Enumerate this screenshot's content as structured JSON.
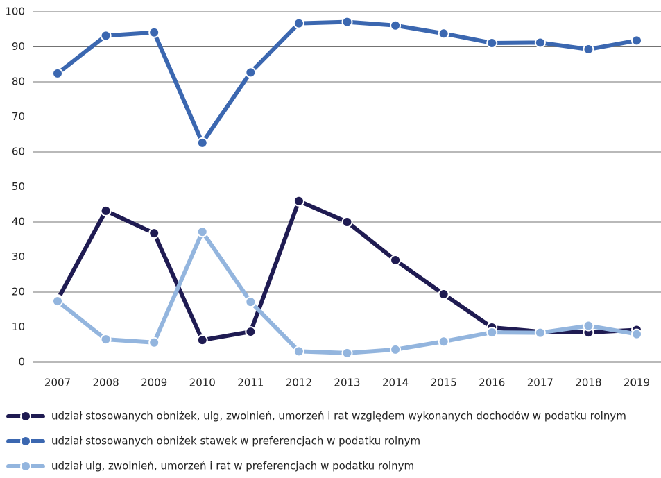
{
  "chart_data": {
    "type": "line",
    "categories": [
      "2007",
      "2008",
      "2009",
      "2010",
      "2011",
      "2012",
      "2013",
      "2014",
      "2015",
      "2016",
      "2017",
      "2018",
      "2019"
    ],
    "series": [
      {
        "name": "udział stosowanych obniżek, ulg, zwolnień, umorzeń i rat względem wykonanych dochodów w podatku rolnym",
        "color": "#1f1b52",
        "values": [
          17.8,
          43.2,
          36.8,
          6.3,
          8.7,
          46.0,
          40.0,
          29.1,
          19.4,
          9.9,
          8.7,
          8.5,
          9.2
        ]
      },
      {
        "name": "udział stosowanych obniżek stawek w preferencjach w podatku rolnym",
        "color": "#3b67b0",
        "values": [
          82.4,
          93.2,
          94.1,
          62.6,
          82.7,
          96.7,
          97.1,
          96.1,
          93.8,
          91.1,
          91.2,
          89.3,
          91.8
        ]
      },
      {
        "name": "udział ulg, zwolnień, umorzeń i rat w preferencjach w podatku rolnym",
        "color": "#93b5de",
        "values": [
          17.4,
          6.5,
          5.6,
          37.2,
          17.2,
          3.1,
          2.6,
          3.6,
          5.9,
          8.5,
          8.4,
          10.4,
          8.0
        ]
      }
    ],
    "ylim": [
      0,
      100
    ],
    "yticks": [
      0,
      10,
      20,
      30,
      40,
      50,
      60,
      70,
      80,
      90,
      100
    ],
    "grid": true
  }
}
